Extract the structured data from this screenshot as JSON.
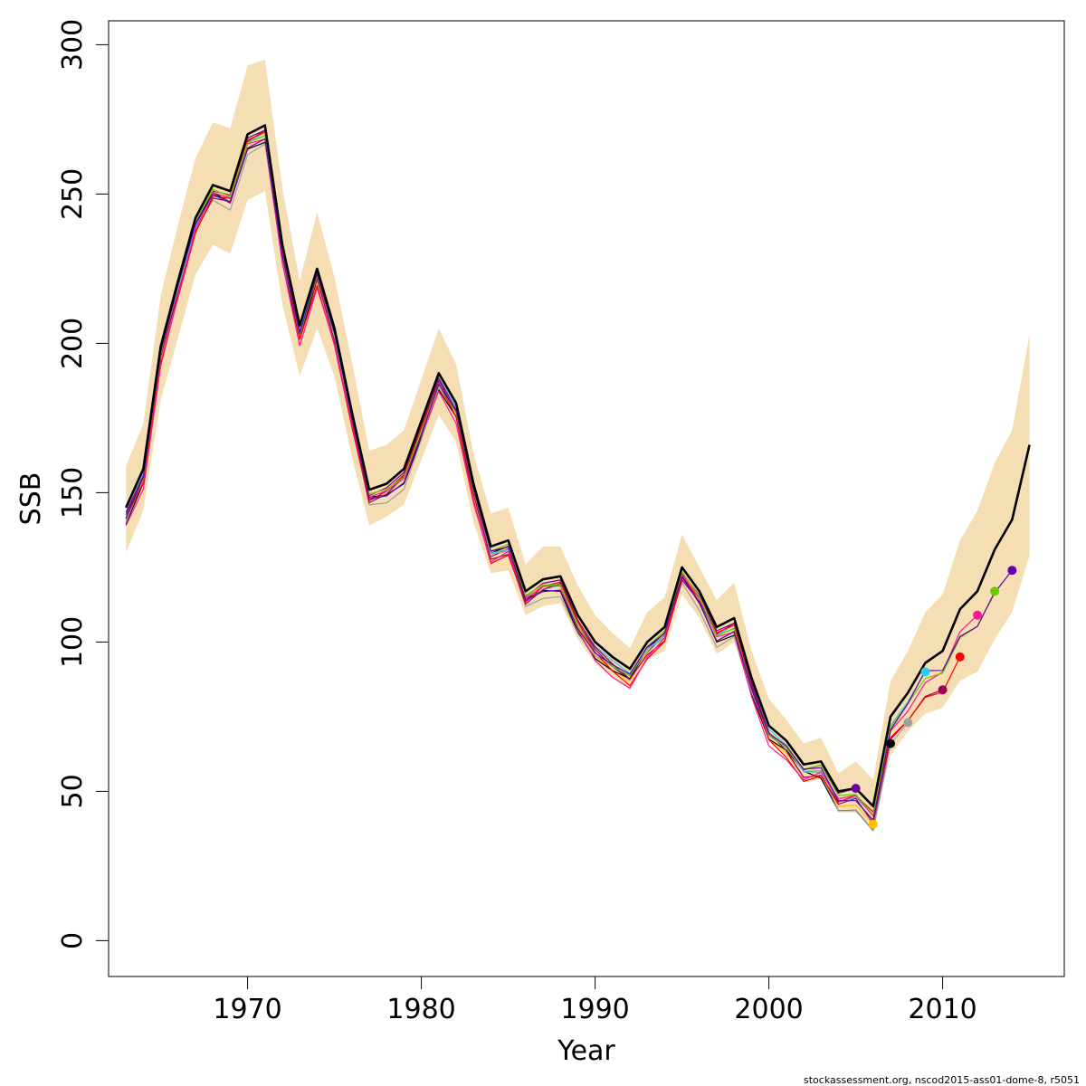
{
  "chart_data": {
    "type": "line",
    "title": "",
    "xlabel": "Year",
    "ylabel": "SSB",
    "xlim": [
      1962,
      2017
    ],
    "ylim": [
      -12,
      308
    ],
    "x_ticks": [
      1970,
      1980,
      1990,
      2000,
      2010
    ],
    "y_ticks": [
      0,
      50,
      100,
      150,
      200,
      250,
      300
    ],
    "grid": false,
    "legend": "none",
    "colors": {
      "band": "#f5deb3",
      "main": "#000000",
      "peels": [
        "#6a00a8",
        "#ffc000",
        "#000000",
        "#a0a0a0",
        "#33c8f0",
        "#a0005a",
        "#ff0000",
        "#ff1493",
        "#66cc00",
        "#6600aa"
      ]
    },
    "x": [
      1963,
      1964,
      1965,
      1966,
      1967,
      1968,
      1969,
      1970,
      1971,
      1972,
      1973,
      1974,
      1975,
      1976,
      1977,
      1978,
      1979,
      1980,
      1981,
      1982,
      1983,
      1984,
      1985,
      1986,
      1987,
      1988,
      1989,
      1990,
      1991,
      1992,
      1993,
      1994,
      1995,
      1996,
      1997,
      1998,
      1999,
      2000,
      2001,
      2002,
      2003,
      2004,
      2005,
      2006,
      2007,
      2008,
      2009,
      2010,
      2011,
      2012,
      2013,
      2014,
      2015
    ],
    "band_upper": [
      159,
      173,
      216,
      240,
      262,
      274,
      272,
      293,
      295,
      252,
      221,
      244,
      222,
      194,
      164,
      166,
      171,
      188,
      205,
      193,
      163,
      143,
      145,
      126,
      132,
      132,
      119,
      109,
      103,
      98,
      110,
      115,
      136,
      125,
      114,
      120,
      97,
      81,
      74,
      66,
      68,
      56,
      60,
      54,
      87,
      97,
      110,
      116,
      134,
      144,
      160,
      171,
      203
    ],
    "band_lower": [
      130,
      144,
      181,
      202,
      223,
      233,
      230,
      248,
      251,
      213,
      189,
      205,
      189,
      162,
      139,
      142,
      146,
      161,
      176,
      167,
      140,
      123,
      124,
      109,
      112,
      113,
      101,
      93,
      88,
      84,
      94,
      97,
      116,
      108,
      96,
      100,
      82,
      67,
      62,
      53,
      54,
      43,
      43,
      38,
      62,
      70,
      76,
      78,
      87,
      90,
      101,
      110,
      129
    ],
    "series": [
      {
        "name": "",
        "color": "#000000",
        "values": [
          145,
          158,
          199,
          221,
          242,
          253,
          251,
          270,
          273,
          233,
          206,
          225,
          205,
          177,
          151,
          153,
          158,
          174,
          190,
          180,
          153,
          132,
          134,
          117,
          121,
          122,
          109,
          100,
          95,
          91,
          100,
          105,
          125,
          117,
          105,
          108,
          88,
          72,
          67,
          59,
          60,
          50,
          51,
          45,
          75,
          83,
          93,
          97,
          111,
          117,
          131,
          141,
          166
        ]
      }
    ],
    "peels": [
      {
        "color": "#6a00a8",
        "end_year": 2005,
        "end_value": 51
      },
      {
        "color": "#ffc000",
        "end_year": 2006,
        "end_value": 39
      },
      {
        "color": "#000000",
        "end_year": 2007,
        "end_value": 66
      },
      {
        "color": "#a0a0a0",
        "end_year": 2008,
        "end_value": 73
      },
      {
        "color": "#33c8f0",
        "end_year": 2009,
        "end_value": 90
      },
      {
        "color": "#a0005a",
        "end_year": 2010,
        "end_value": 84
      },
      {
        "color": "#ff0000",
        "end_year": 2011,
        "end_value": 95
      },
      {
        "color": "#ff1493",
        "end_year": 2012,
        "end_value": 109
      },
      {
        "color": "#66cc00",
        "end_year": 2013,
        "end_value": 117
      },
      {
        "color": "#6600aa",
        "end_year": 2014,
        "end_value": 124
      }
    ]
  },
  "footer": {
    "text": "stockassessment.org, nscod2015-ass01-dome-8, r5051"
  }
}
